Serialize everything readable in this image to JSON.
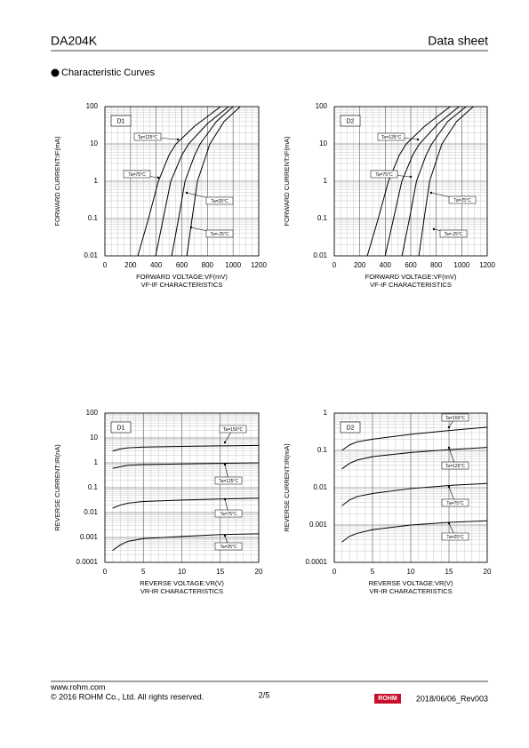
{
  "header": {
    "title": "DA204K",
    "doc_type": "Data sheet"
  },
  "section_title": "Characteristic Curves",
  "chart_data": [
    {
      "type": "line",
      "panel_label": "D1",
      "y_label": "FORWARD CURRENT:IF(mA)",
      "x_label": "FORWARD VOLTAGE:VF(mV)",
      "subtitle": "VF-IF CHARACTERISTICS",
      "log_y": true,
      "grid": true,
      "xlim": [
        0,
        1200
      ],
      "xticks": [
        0,
        200,
        400,
        600,
        800,
        1000,
        1200
      ],
      "ylim": [
        0.01,
        100
      ],
      "yticks": [
        100,
        10,
        1,
        0.1,
        0.01
      ],
      "series": [
        {
          "name": "Ta=125°C",
          "color": "#000000",
          "x": [
            257,
            340,
            417,
            500,
            555,
            700,
            903
          ],
          "values": [
            0.01,
            0.1,
            1,
            5,
            10,
            30,
            100
          ]
        },
        {
          "name": "Ta=75°C",
          "color": "#000000",
          "x": [
            396,
            455,
            514,
            600,
            653,
            800,
            965
          ],
          "values": [
            0.01,
            0.1,
            1,
            5,
            10,
            35,
            100
          ]
        },
        {
          "name": "Ta=25°C",
          "color": "#000000",
          "x": [
            521,
            575,
            625,
            700,
            743,
            870,
            1000
          ],
          "values": [
            0.01,
            0.1,
            1,
            5,
            10,
            40,
            100
          ]
        },
        {
          "name": "Ta=-25°C",
          "color": "#000000",
          "x": [
            639,
            680,
            722,
            790,
            819,
            930,
            1056
          ],
          "values": [
            0.01,
            0.1,
            1,
            5,
            10,
            40,
            100
          ]
        }
      ]
    },
    {
      "type": "line",
      "panel_label": "D2",
      "y_label": "FORWARD CURRENT:IF(mA)",
      "x_label": "FORWARD VOLTAGE:VF(mV)",
      "subtitle": "VF-IF CHARACTERISTICS",
      "log_y": true,
      "grid": true,
      "xlim": [
        0,
        1200
      ],
      "xticks": [
        0,
        200,
        400,
        600,
        800,
        1000,
        1200
      ],
      "ylim": [
        0.01,
        100
      ],
      "yticks": [
        100,
        10,
        1,
        0.1,
        0.01
      ],
      "series": [
        {
          "name": "Ta=125°C",
          "color": "#000000",
          "x": [
            259,
            345,
            425,
            510,
            565,
            710,
            909
          ],
          "values": [
            0.01,
            0.1,
            1,
            5,
            10,
            30,
            100
          ]
        },
        {
          "name": "Ta=75°C",
          "color": "#000000",
          "x": [
            399,
            465,
            530,
            615,
            668,
            815,
            979
          ],
          "values": [
            0.01,
            0.1,
            1,
            5,
            10,
            35,
            100
          ]
        },
        {
          "name": "Ta=25°C",
          "color": "#000000",
          "x": [
            531,
            590,
            645,
            720,
            765,
            890,
            1035
          ],
          "values": [
            0.01,
            0.1,
            1,
            5,
            10,
            40,
            100
          ]
        },
        {
          "name": "Ta=-25°C",
          "color": "#000000",
          "x": [
            664,
            705,
            748,
            815,
            845,
            960,
            1091
          ],
          "values": [
            0.01,
            0.1,
            1,
            5,
            10,
            40,
            100
          ]
        }
      ]
    },
    {
      "type": "line",
      "panel_label": "D1",
      "y_label": "REVERSE CURRENT:IR(nA)",
      "x_label": "REVERSE VOLTAGE:VR(V)",
      "subtitle": "VR-IR CHARACTERISTICS",
      "log_y": true,
      "grid": true,
      "xlim": [
        0,
        20
      ],
      "xticks": [
        0,
        5,
        10,
        15,
        20
      ],
      "ylim": [
        0.0001,
        100
      ],
      "yticks": [
        100,
        10,
        1,
        0.1,
        0.01,
        0.001,
        0.0001
      ],
      "x": [
        1,
        2,
        3,
        5,
        10,
        15,
        20
      ],
      "series": [
        {
          "name": "Ta=150°C",
          "color": "#000000",
          "values": [
            3,
            3.6,
            4,
            4.3,
            4.6,
            4.8,
            5
          ]
        },
        {
          "name": "Ta=125°C",
          "color": "#000000",
          "values": [
            0.6,
            0.7,
            0.8,
            0.85,
            0.9,
            0.95,
            1
          ]
        },
        {
          "name": "Ta=75°C",
          "color": "#000000",
          "values": [
            0.015,
            0.02,
            0.024,
            0.028,
            0.032,
            0.035,
            0.038
          ]
        },
        {
          "name": "Ta=25°C",
          "color": "#000000",
          "values": [
            0.0003,
            0.0005,
            0.0007,
            0.0009,
            0.0011,
            0.0013,
            0.0014
          ]
        }
      ]
    },
    {
      "type": "line",
      "panel_label": "D2",
      "y_label": "REVERSE CURRENT:IR(mA)",
      "x_label": "REVERSE VOLTAGE:VR(V)",
      "subtitle": "VR-IR CHARACTERISTICS",
      "log_y": true,
      "grid": true,
      "xlim": [
        0,
        20
      ],
      "xticks": [
        0,
        5,
        10,
        15,
        20
      ],
      "ylim": [
        0.0001,
        1
      ],
      "yticks": [
        1,
        0.1,
        0.01,
        0.001,
        0.0001
      ],
      "x": [
        1,
        2,
        3,
        5,
        10,
        15,
        20
      ],
      "series": [
        {
          "name": "Ta=150°C",
          "color": "#000000",
          "values": [
            0.1,
            0.14,
            0.17,
            0.2,
            0.27,
            0.34,
            0.42
          ]
        },
        {
          "name": "Ta=125°C",
          "color": "#000000",
          "values": [
            0.032,
            0.045,
            0.055,
            0.068,
            0.088,
            0.105,
            0.12
          ]
        },
        {
          "name": "Ta=75°C",
          "color": "#000000",
          "values": [
            0.0033,
            0.0047,
            0.0058,
            0.007,
            0.0095,
            0.0115,
            0.013
          ]
        },
        {
          "name": "Ta=25°C",
          "color": "#000000",
          "values": [
            0.00035,
            0.0005,
            0.0006,
            0.00075,
            0.001,
            0.00118,
            0.0013
          ]
        }
      ]
    }
  ],
  "footer": {
    "url": "www.rohm.com",
    "copyright": "© 2016 ROHM Co., Ltd. All rights reserved.",
    "page": "2/5",
    "logo": "ROHM",
    "revision": "2018/06/06_Rev003"
  }
}
